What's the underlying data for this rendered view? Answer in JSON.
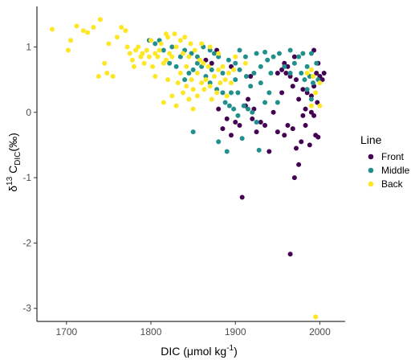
{
  "chart_data": {
    "type": "scatter",
    "xlabel": {
      "main": "DIC (",
      "mu": "μ",
      "mid": "mol kg",
      "sup": "-1",
      "end": ")"
    },
    "ylabel": {
      "delta": "δ",
      "sup": "13",
      "main": " C",
      "sub": "DIC",
      "unit": "(‰)"
    },
    "xlim": [
      1665,
      2030
    ],
    "ylim": [
      -3.2,
      1.62
    ],
    "x_ticks": [
      1700,
      1800,
      1900,
      2000
    ],
    "y_ticks": [
      -3,
      -2,
      -1,
      0,
      1
    ],
    "legend": {
      "title": "Line",
      "placement": "right"
    },
    "series": [
      {
        "name": "Front",
        "color": "#440154",
        "points": [
          [
            1908,
            -1.3
          ],
          [
            1965,
            -2.17
          ],
          [
            1970,
            -1.0
          ],
          [
            1975,
            -0.8
          ],
          [
            1950,
            -0.3
          ],
          [
            1958,
            -0.35
          ],
          [
            1962,
            -0.2
          ],
          [
            1968,
            -0.25
          ],
          [
            1972,
            -0.55
          ],
          [
            1978,
            -0.45
          ],
          [
            1983,
            -0.2
          ],
          [
            1988,
            -0.5
          ],
          [
            1995,
            -0.35
          ],
          [
            1998,
            -0.38
          ],
          [
            1940,
            -0.6
          ],
          [
            1935,
            -0.2
          ],
          [
            1930,
            -0.15
          ],
          [
            1925,
            -0.3
          ],
          [
            1922,
            0.05
          ],
          [
            1920,
            -0.1
          ],
          [
            1915,
            0.2
          ],
          [
            1912,
            0.1
          ],
          [
            1905,
            -0.2
          ],
          [
            1900,
            -0.15
          ],
          [
            1895,
            -0.35
          ],
          [
            1890,
            -0.1
          ],
          [
            1885,
            -0.25
          ],
          [
            1880,
            0.05
          ],
          [
            1945,
            0.0
          ],
          [
            1955,
            0.3
          ],
          [
            1960,
            0.6
          ],
          [
            1965,
            0.55
          ],
          [
            1972,
            0.5
          ],
          [
            1980,
            0.35
          ],
          [
            1985,
            0.3
          ],
          [
            1990,
            0.25
          ],
          [
            1993,
            0.4
          ],
          [
            1996,
            0.6
          ],
          [
            2000,
            0.55
          ],
          [
            2003,
            0.5
          ],
          [
            2005,
            0.6
          ],
          [
            1983,
            0.05
          ],
          [
            1990,
            0.0
          ],
          [
            1993,
            -0.05
          ],
          [
            1997,
            0.15
          ],
          [
            1975,
            0.2
          ],
          [
            1968,
            0.4
          ],
          [
            1950,
            0.6
          ],
          [
            1958,
            0.75
          ],
          [
            1895,
            0.7
          ],
          [
            1878,
            0.95
          ],
          [
            1872,
            0.75
          ],
          [
            1865,
            0.8
          ],
          [
            1955,
            0.65
          ],
          [
            1962,
            0.7
          ],
          [
            1998,
            0.75
          ],
          [
            1993,
            0.95
          ],
          [
            1970,
            0.85
          ],
          [
            1918,
            0.55
          ],
          [
            1980,
            -0.05
          ]
        ]
      },
      {
        "name": "Middle",
        "color": "#21908C",
        "points": [
          [
            1850,
            -0.3
          ],
          [
            1880,
            -0.45
          ],
          [
            1890,
            -0.6
          ],
          [
            1903,
            -0.05
          ],
          [
            1908,
            -0.4
          ],
          [
            1910,
            0.1
          ],
          [
            1915,
            0.05
          ],
          [
            1920,
            0.0
          ],
          [
            1925,
            -0.15
          ],
          [
            1928,
            -0.58
          ],
          [
            1898,
            0.05
          ],
          [
            1893,
            0.1
          ],
          [
            1888,
            0.15
          ],
          [
            1885,
            0.3
          ],
          [
            1878,
            0.35
          ],
          [
            1870,
            0.45
          ],
          [
            1865,
            0.55
          ],
          [
            1860,
            0.7
          ],
          [
            1855,
            0.75
          ],
          [
            1850,
            0.65
          ],
          [
            1845,
            0.6
          ],
          [
            1840,
            0.5
          ],
          [
            1835,
            0.85
          ],
          [
            1830,
            0.7
          ],
          [
            1825,
            1.0
          ],
          [
            1822,
            0.75
          ],
          [
            1815,
            0.95
          ],
          [
            1805,
            1.05
          ],
          [
            1798,
            1.1
          ],
          [
            1810,
            1.1
          ],
          [
            1840,
            0.95
          ],
          [
            1848,
            0.9
          ],
          [
            1855,
            0.85
          ],
          [
            1862,
            1.0
          ],
          [
            1870,
            0.95
          ],
          [
            1875,
            0.9
          ],
          [
            1880,
            0.85
          ],
          [
            1892,
            0.8
          ],
          [
            1900,
            0.75
          ],
          [
            1905,
            0.65
          ],
          [
            1913,
            0.55
          ],
          [
            1922,
            0.6
          ],
          [
            1930,
            0.7
          ],
          [
            1938,
            0.8
          ],
          [
            1945,
            0.85
          ],
          [
            1952,
            0.9
          ],
          [
            1958,
            0.7
          ],
          [
            1965,
            0.6
          ],
          [
            1970,
            0.75
          ],
          [
            1975,
            0.85
          ],
          [
            1978,
            0.6
          ],
          [
            1982,
            0.5
          ],
          [
            1985,
            0.7
          ],
          [
            1988,
            0.55
          ],
          [
            1992,
            0.45
          ],
          [
            1996,
            0.75
          ],
          [
            1998,
            0.5
          ],
          [
            1985,
            0.35
          ],
          [
            1990,
            0.2
          ],
          [
            1965,
            0.95
          ],
          [
            1905,
            0.95
          ],
          [
            1912,
            0.85
          ],
          [
            1925,
            0.9
          ],
          [
            1935,
            0.92
          ],
          [
            1942,
            0.6
          ],
          [
            1895,
            0.3
          ],
          [
            1885,
            0.6
          ],
          [
            1872,
            0.65
          ],
          [
            1918,
            0.4
          ],
          [
            1940,
            0.3
          ],
          [
            1950,
            0.15
          ],
          [
            1903,
            0.3
          ],
          [
            1930,
            0.45
          ],
          [
            1935,
            0.15
          ],
          [
            1900,
            0.5
          ],
          [
            1980,
            0.9
          ],
          [
            1990,
            0.9
          ]
        ]
      },
      {
        "name": "Back",
        "color": "#FDE725",
        "points": [
          [
            1683,
            1.27
          ],
          [
            1702,
            0.95
          ],
          [
            1705,
            1.1
          ],
          [
            1712,
            1.32
          ],
          [
            1720,
            1.25
          ],
          [
            1725,
            1.22
          ],
          [
            1732,
            1.3
          ],
          [
            1738,
            0.55
          ],
          [
            1740,
            1.42
          ],
          [
            1745,
            0.75
          ],
          [
            1748,
            0.6
          ],
          [
            1750,
            1.05
          ],
          [
            1755,
            0.55
          ],
          [
            1760,
            1.15
          ],
          [
            1765,
            1.3
          ],
          [
            1770,
            1.25
          ],
          [
            1772,
            1.0
          ],
          [
            1775,
            0.9
          ],
          [
            1778,
            0.8
          ],
          [
            1780,
            0.7
          ],
          [
            1782,
            0.95
          ],
          [
            1785,
            1.0
          ],
          [
            1788,
            0.85
          ],
          [
            1790,
            0.9
          ],
          [
            1792,
            0.75
          ],
          [
            1795,
            0.95
          ],
          [
            1798,
            0.85
          ],
          [
            1800,
            1.1
          ],
          [
            1802,
            0.7
          ],
          [
            1805,
            0.9
          ],
          [
            1808,
            0.85
          ],
          [
            1810,
            0.95
          ],
          [
            1812,
            1.05
          ],
          [
            1815,
            0.75
          ],
          [
            1818,
            0.8
          ],
          [
            1820,
            1.15
          ],
          [
            1822,
            0.9
          ],
          [
            1825,
            0.85
          ],
          [
            1828,
            1.2
          ],
          [
            1830,
            1.0
          ],
          [
            1832,
            0.45
          ],
          [
            1835,
            0.6
          ],
          [
            1838,
            0.9
          ],
          [
            1840,
            1.15
          ],
          [
            1842,
            0.7
          ],
          [
            1845,
            0.85
          ],
          [
            1848,
            0.5
          ],
          [
            1850,
            0.35
          ],
          [
            1852,
            0.95
          ],
          [
            1855,
            0.6
          ],
          [
            1858,
            0.8
          ],
          [
            1860,
            0.45
          ],
          [
            1862,
            0.75
          ],
          [
            1865,
            0.5
          ],
          [
            1868,
            0.7
          ],
          [
            1870,
            0.4
          ],
          [
            1872,
            0.2
          ],
          [
            1875,
            0.55
          ],
          [
            1878,
            0.3
          ],
          [
            1880,
            0.65
          ],
          [
            1882,
            0.45
          ],
          [
            1885,
            0.7
          ],
          [
            1888,
            0.5
          ],
          [
            1890,
            0.25
          ],
          [
            1892,
            0.6
          ],
          [
            1895,
            0.45
          ],
          [
            1898,
            0.65
          ],
          [
            1900,
            0.85
          ],
          [
            1845,
            0.2
          ],
          [
            1850,
            0.05
          ],
          [
            1838,
            0.3
          ],
          [
            1830,
            0.1
          ],
          [
            1825,
            0.25
          ],
          [
            1815,
            0.15
          ],
          [
            1820,
            0.5
          ],
          [
            1805,
            0.55
          ],
          [
            1995,
            -3.13
          ],
          [
            1985,
            0.6
          ],
          [
            1990,
            0.65
          ],
          [
            1995,
            0.3
          ],
          [
            2000,
            0.1
          ],
          [
            2000,
            0.45
          ],
          [
            1992,
            0.55
          ],
          [
            1990,
            0.1
          ],
          [
            1870,
            1.0
          ],
          [
            1860,
            1.05
          ],
          [
            1855,
            0.25
          ],
          [
            1847,
            1.05
          ],
          [
            1880,
            0.9
          ],
          [
            1912,
            0.75
          ],
          [
            1835,
            1.1
          ],
          [
            1818,
            1.2
          ],
          [
            1863,
            0.35
          ],
          [
            1842,
            0.4
          ]
        ]
      }
    ]
  }
}
